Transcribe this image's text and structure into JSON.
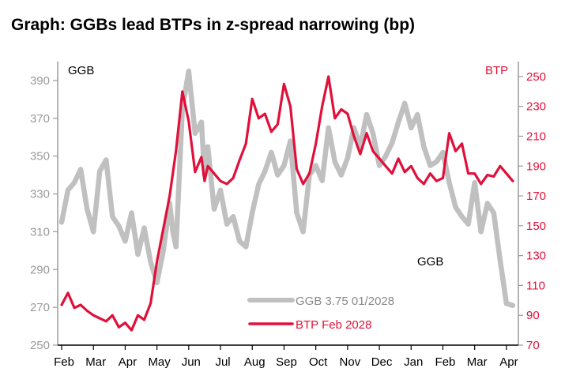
{
  "chart_data": {
    "type": "line",
    "title": "Graph:  GGBs lead BTPs in z-spread narrowing (bp)",
    "left_axis": {
      "label": "GGB",
      "ylim": [
        250,
        400
      ],
      "ticks": [
        250,
        270,
        290,
        310,
        330,
        350,
        370,
        390
      ]
    },
    "right_axis": {
      "label": "BTP",
      "ylim": [
        70,
        260
      ],
      "ticks": [
        70,
        90,
        110,
        130,
        150,
        170,
        190,
        210,
        230,
        250
      ]
    },
    "x_ticks": [
      "Feb",
      "Mar",
      "Apr",
      "May",
      "Jun",
      "Jul",
      "Aug",
      "Sep",
      "Oct",
      "Nov",
      "Dec",
      "Jan",
      "Feb",
      "Mar",
      "Apr"
    ],
    "annotation": "GGB",
    "legend": {
      "position": "bottom-center"
    },
    "colors": {
      "ggb": "#c0c0c0",
      "btp": "#e0103a"
    },
    "series": [
      {
        "name": "GGB 3.75 01/2028",
        "axis": "left",
        "x": [
          0,
          0.2,
          0.4,
          0.6,
          0.8,
          1.0,
          1.2,
          1.4,
          1.6,
          1.8,
          2.0,
          2.2,
          2.4,
          2.6,
          2.8,
          3.0,
          3.2,
          3.4,
          3.5,
          3.6,
          3.8,
          4.0,
          4.2,
          4.4,
          4.5,
          4.6,
          4.8,
          5.0,
          5.2,
          5.4,
          5.6,
          5.8,
          6.0,
          6.2,
          6.4,
          6.6,
          6.8,
          7.0,
          7.2,
          7.4,
          7.6,
          7.8,
          8.0,
          8.2,
          8.4,
          8.6,
          8.8,
          9.0,
          9.2,
          9.4,
          9.6,
          9.8,
          10.0,
          10.2,
          10.4,
          10.6,
          10.8,
          11.0,
          11.2,
          11.4,
          11.6,
          11.8,
          12.0,
          12.2,
          12.4,
          12.6,
          12.8,
          13.0,
          13.2,
          13.4,
          13.6,
          13.8,
          14.0,
          14.2
        ],
        "values": [
          315,
          332,
          336,
          343,
          322,
          310,
          342,
          348,
          318,
          313,
          305,
          320,
          298,
          312,
          294,
          283,
          300,
          325,
          310,
          302,
          375,
          395,
          362,
          368,
          340,
          355,
          322,
          332,
          314,
          318,
          305,
          302,
          320,
          335,
          342,
          352,
          340,
          345,
          358,
          320,
          310,
          340,
          345,
          337,
          365,
          347,
          340,
          349,
          365,
          355,
          372,
          362,
          345,
          350,
          357,
          368,
          378,
          365,
          372,
          355,
          345,
          347,
          352,
          336,
          323,
          318,
          314,
          336,
          310,
          325,
          320,
          295,
          272,
          271
        ]
      },
      {
        "name": "BTP Feb 2028",
        "axis": "right",
        "x": [
          0,
          0.2,
          0.4,
          0.6,
          0.8,
          1.0,
          1.2,
          1.4,
          1.6,
          1.8,
          2.0,
          2.2,
          2.4,
          2.6,
          2.8,
          3.0,
          3.2,
          3.4,
          3.6,
          3.8,
          4.0,
          4.2,
          4.4,
          4.5,
          4.6,
          4.8,
          5.0,
          5.2,
          5.4,
          5.6,
          5.8,
          6.0,
          6.2,
          6.4,
          6.6,
          6.8,
          7.0,
          7.2,
          7.4,
          7.6,
          7.8,
          8.0,
          8.2,
          8.4,
          8.6,
          8.8,
          9.0,
          9.2,
          9.4,
          9.6,
          9.8,
          10.0,
          10.2,
          10.4,
          10.6,
          10.8,
          11.0,
          11.2,
          11.4,
          11.6,
          11.8,
          12.0,
          12.2,
          12.4,
          12.6,
          12.8,
          13.0,
          13.2,
          13.4,
          13.6,
          13.8,
          14.0,
          14.2
        ],
        "values": [
          97,
          105,
          95,
          97,
          93,
          90,
          88,
          86,
          90,
          82,
          85,
          80,
          90,
          87,
          98,
          126,
          148,
          170,
          200,
          240,
          220,
          186,
          196,
          180,
          190,
          185,
          180,
          178,
          182,
          194,
          205,
          235,
          222,
          225,
          213,
          218,
          245,
          230,
          188,
          178,
          185,
          205,
          230,
          250,
          222,
          228,
          225,
          210,
          198,
          212,
          200,
          195,
          190,
          185,
          195,
          186,
          190,
          182,
          178,
          185,
          180,
          182,
          212,
          200,
          205,
          185,
          185,
          178,
          184,
          183,
          190,
          185,
          180
        ]
      }
    ]
  }
}
